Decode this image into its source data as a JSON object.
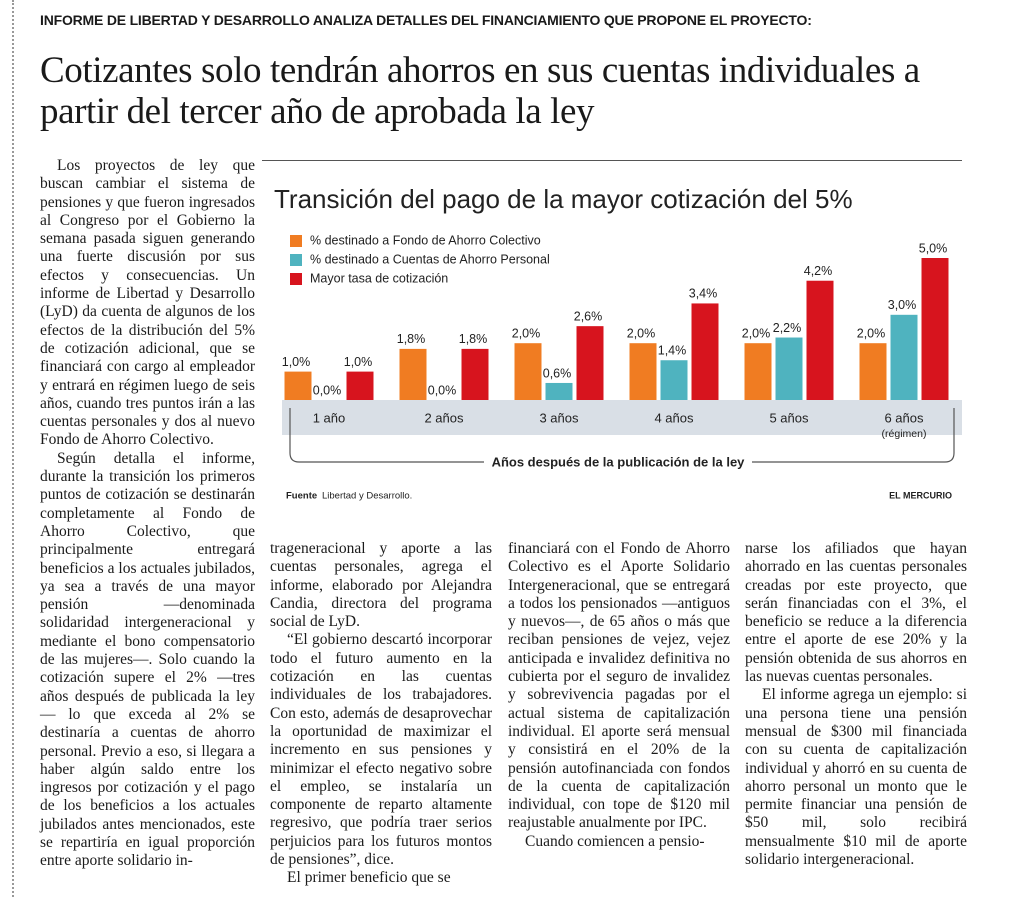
{
  "kicker": "INFORME DE LIBERTAD Y DESARROLLO ANALIZA DETALLES DEL FINANCIAMIENTO QUE PROPONE EL PROYECTO:",
  "headline": "Cotizantes solo tendrán ahorros en sus cuentas individuales a partir del tercer año de aprobada la ley",
  "chart_data": {
    "type": "bar",
    "title": "Transición del pago de la mayor cotización del 5%",
    "categories": [
      "1 año",
      "2 años",
      "3 años",
      "4 años",
      "5 años",
      "6 años"
    ],
    "regime_note": "(régimen)",
    "xlabel": "Años después de la publicación de la ley",
    "series": [
      {
        "name": "% destinado a Fondo de Ahorro Colectivo",
        "color": "#f07c22",
        "values": [
          1.0,
          1.8,
          2.0,
          2.0,
          2.0,
          2.0
        ],
        "value_labels": [
          "1,0%",
          "1,8%",
          "2,0%",
          "2,0%",
          "2,0%",
          "2,0%"
        ]
      },
      {
        "name": "% destinado a Cuentas de Ahorro Personal",
        "color": "#4fb3bf",
        "values": [
          0.0,
          0.0,
          0.6,
          1.4,
          2.2,
          3.0
        ],
        "value_labels": [
          "0,0%",
          "0,0%",
          "0,6%",
          "1,4%",
          "2,2%",
          "3,0%"
        ]
      },
      {
        "name": "Mayor tasa de cotización",
        "color": "#d7141e",
        "values": [
          1.0,
          1.8,
          2.6,
          3.4,
          4.2,
          5.0
        ],
        "value_labels": [
          "1,0%",
          "1,8%",
          "2,6%",
          "3,4%",
          "4,2%",
          "5,0%"
        ]
      }
    ],
    "source_label": "Fuente",
    "source": "Libertad y Desarrollo.",
    "credit": "EL MERCURIO"
  },
  "body": {
    "columns": [
      {
        "paragraphs": [
          "Los proyectos de ley que buscan cambiar el sistema de pensiones y que fueron ingresados al Congreso por el Gobierno la semana pasada siguen generando una fuerte discusión por sus efectos y consecuencias. Un informe de Libertad y Desarrollo (LyD) da cuenta de algunos de los efectos de la distribución del 5% de cotización adicional, que se financiará con cargo al empleador y entrará en régimen luego de seis años, cuando tres puntos irán a las cuentas personales y dos al nuevo Fondo de Ahorro Colectivo.",
          "Según detalla el informe, durante la transición los primeros puntos de cotización se destinarán completamente al Fondo de Ahorro Colectivo, que principalmente entregará beneficios a los actuales jubilados, ya sea a través de una mayor pensión —denominada solidaridad intergeneracional y mediante el bono compensatorio de las mujeres—. Solo cuando la cotización supere el 2% —tres años después de publicada la ley— lo que exceda al 2% se destinaría a cuentas de ahorro personal. Previo a eso, si llegara a haber algún saldo entre los ingresos por cotización y el pago de los beneficios a los actuales jubilados antes mencionados, este se repartiría en igual proporción entre aporte solidario in-"
        ]
      },
      {
        "paragraphs": [
          "trageneracional y aporte a las cuentas personales, agrega el informe, elaborado por Alejandra Candia, directora del programa social de LyD.",
          "“El gobierno descartó incorporar todo el futuro aumento en la cotización en las cuentas individuales de los trabajadores. Con esto, además de desaprovechar la oportunidad de maximizar el incremento en sus pensiones y minimizar el efecto negativo sobre el empleo, se instalaría un componente de reparto altamente regresivo, que podría traer serios perjuicios para los futuros montos de pensiones”, dice.",
          "El primer beneficio que se"
        ]
      },
      {
        "paragraphs": [
          "financiará con el Fondo de Ahorro Colectivo es el Aporte Solidario Intergeneracional, que se entregará a todos los pensionados —antiguos y nuevos—, de 65 años o más que reciban pensiones de vejez, vejez anticipada e invalidez definitiva no cubierta por el seguro de invalidez y sobrevivencia pagadas por el actual sistema de capitalización individual. El aporte será mensual y consistirá en el 20% de la pensión autofinanciada con fondos de la cuenta de capitalización individual, con tope de $120 mil reajustable anualmente por IPC.",
          "Cuando comiencen a pensio-"
        ]
      },
      {
        "paragraphs": [
          "narse los afiliados que hayan ahorrado en las cuentas personales creadas por este proyecto, que serán financiadas con el 3%, el beneficio se reduce a la diferencia entre el aporte de ese 20% y la pensión obtenida de sus ahorros en las nuevas cuentas personales.",
          "El informe agrega un ejemplo: si una persona tiene una pensión mensual de $300 mil financiada con su cuenta de capitalización individual y ahorró en su cuenta de ahorro personal un monto que le permite financiar una pensión de $50 mil, solo recibirá mensualmente $10 mil de aporte solidario intergeneracional."
        ]
      }
    ]
  }
}
